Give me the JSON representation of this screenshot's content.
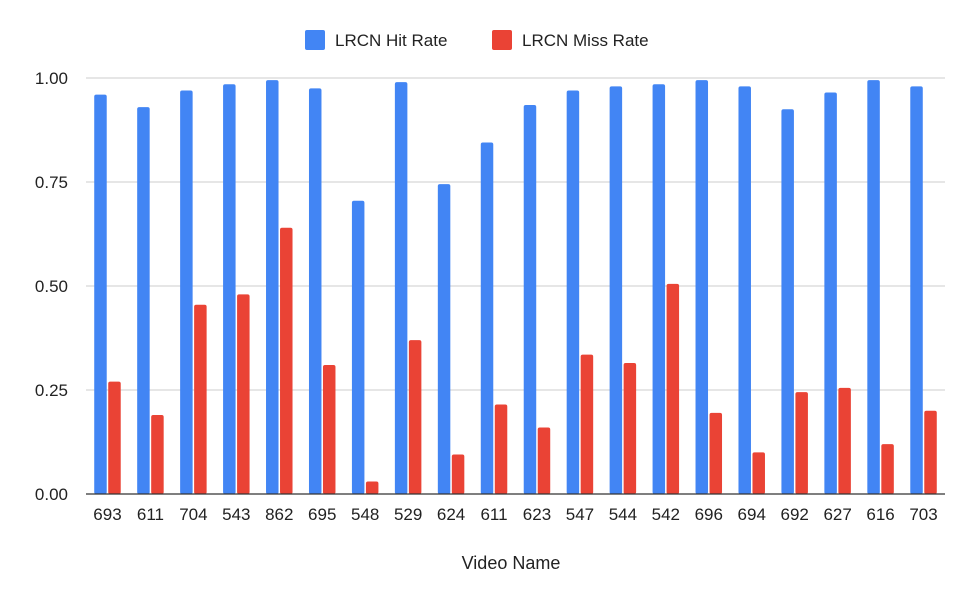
{
  "chart_data": {
    "type": "bar",
    "title": "",
    "xlabel": "Video Name",
    "ylabel": "",
    "ylim": [
      0,
      1
    ],
    "yticks": [
      "0.00",
      "0.25",
      "0.50",
      "0.75",
      "1.00"
    ],
    "ytick_values": [
      0,
      0.25,
      0.5,
      0.75,
      1.0
    ],
    "grid": true,
    "legend_position": "top",
    "categories": [
      "693",
      "611",
      "704",
      "543",
      "862",
      "695",
      "548",
      "529",
      "624",
      "611",
      "623",
      "547",
      "544",
      "542",
      "696",
      "694",
      "692",
      "627",
      "616",
      "703"
    ],
    "series": [
      {
        "name": "LRCN Hit Rate",
        "color": "#4285F4",
        "values": [
          0.96,
          0.93,
          0.97,
          0.985,
          0.995,
          0.975,
          0.705,
          0.99,
          0.745,
          0.845,
          0.935,
          0.97,
          0.98,
          0.985,
          0.995,
          0.98,
          0.925,
          0.965,
          0.995,
          0.98
        ]
      },
      {
        "name": "LRCN Miss Rate",
        "color": "#EA4335",
        "values": [
          0.27,
          0.19,
          0.455,
          0.48,
          0.64,
          0.31,
          0.03,
          0.37,
          0.095,
          0.215,
          0.16,
          0.335,
          0.315,
          0.505,
          0.195,
          0.1,
          0.245,
          0.255,
          0.12,
          0.2
        ]
      }
    ]
  }
}
